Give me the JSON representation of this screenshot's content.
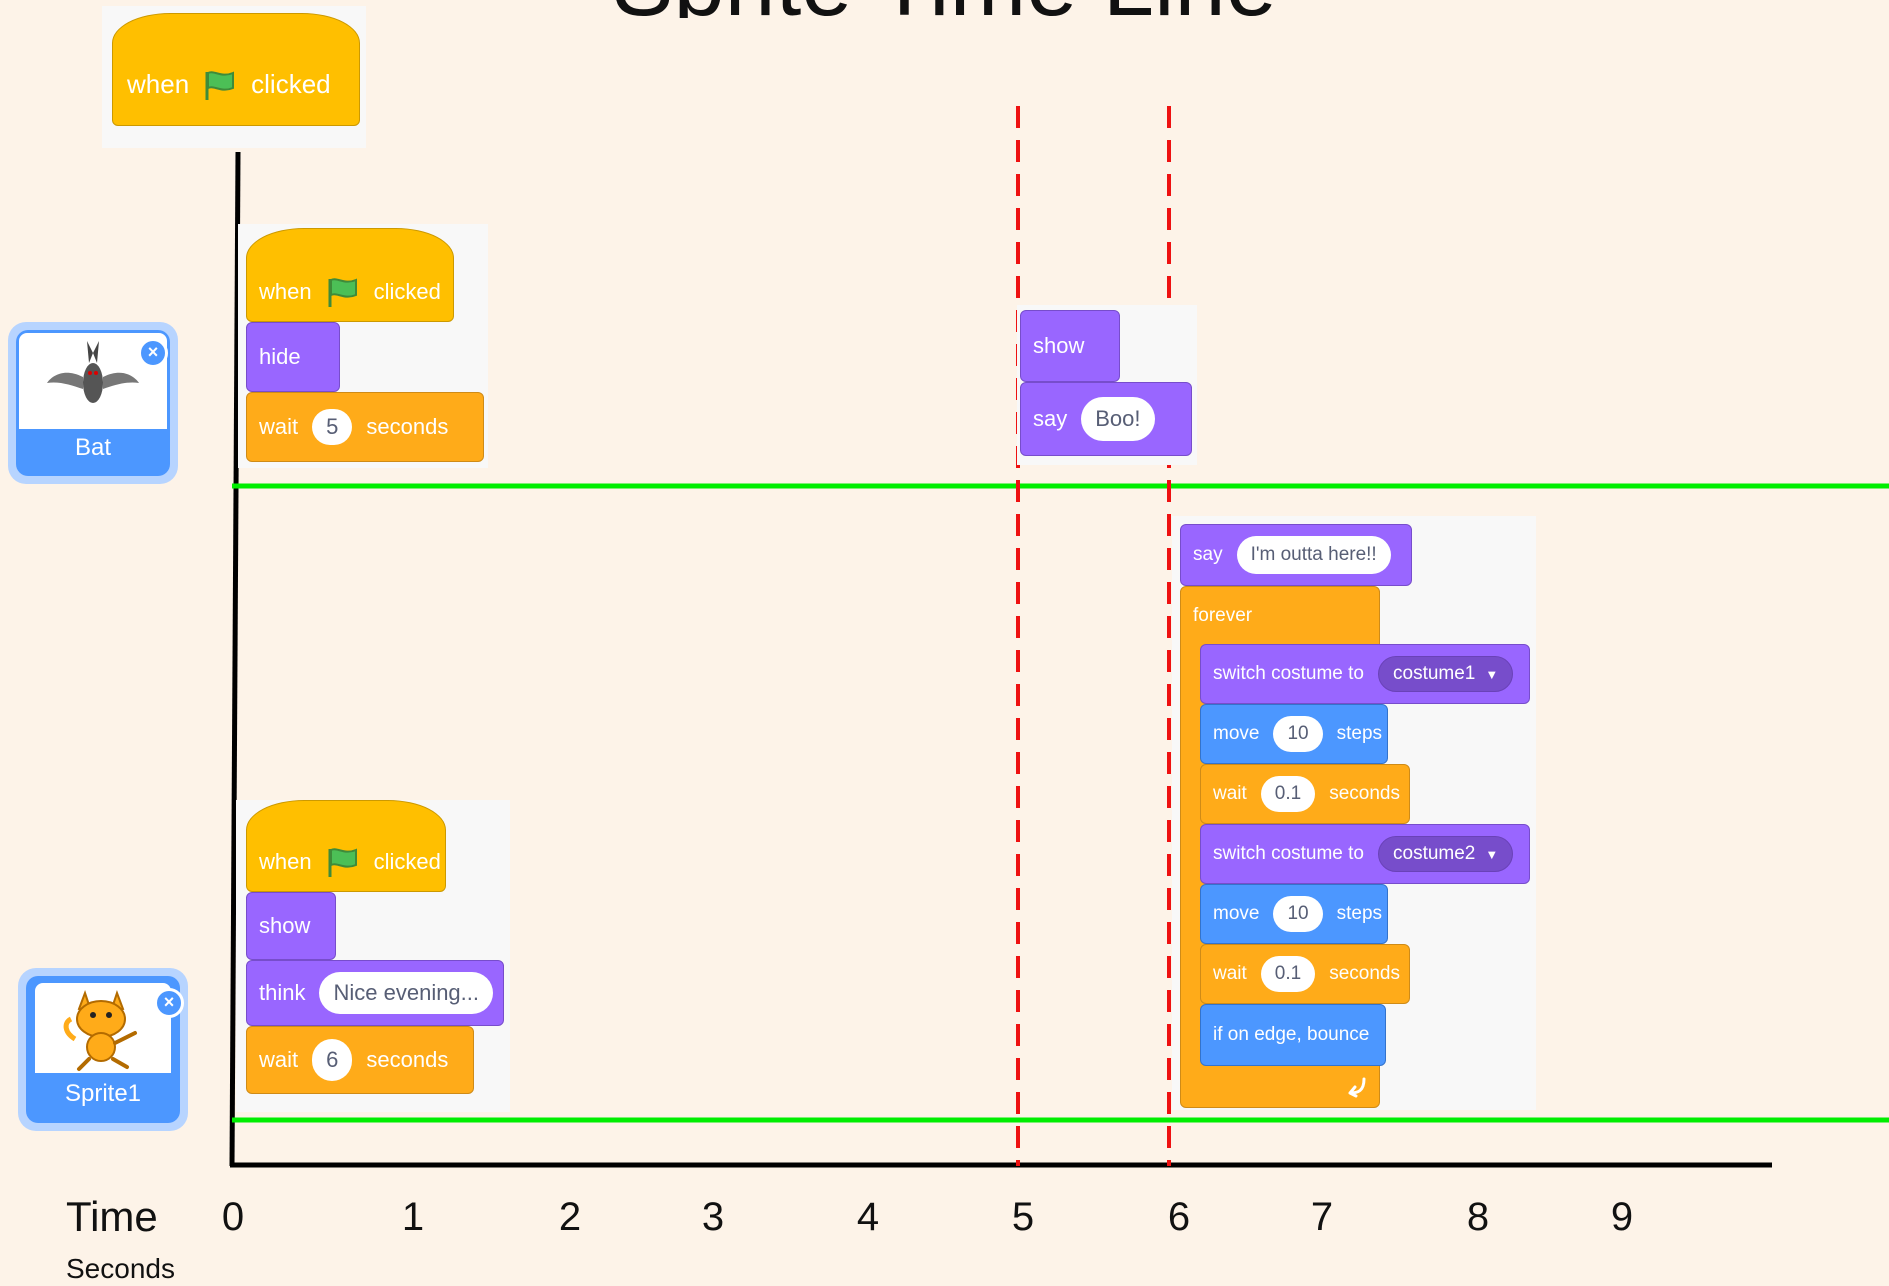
{
  "title": "Sprite Time Line",
  "axis": {
    "label": "Time",
    "unit": "Seconds",
    "ticks": [
      "0",
      "1",
      "2",
      "3",
      "4",
      "5",
      "6",
      "7",
      "8",
      "9"
    ]
  },
  "colors": {
    "background": "#fdf3e8",
    "divider_line": "#00ee00",
    "marker_line": "#ee1111",
    "event": "#ffbf00",
    "looks": "#9966ff",
    "control": "#ffab19",
    "motion": "#4c97ff"
  },
  "markers": [
    "5",
    "6"
  ],
  "top_hat": {
    "when": "when",
    "icon": "green-flag-icon",
    "clicked": "clicked"
  },
  "sprites": [
    {
      "name": "Bat",
      "close": "×"
    },
    {
      "name": "Sprite1",
      "close": "×"
    }
  ],
  "bat_script": {
    "hat": {
      "when": "when",
      "clicked": "clicked"
    },
    "hide": "hide",
    "wait": {
      "label": "wait",
      "value": "5",
      "unit": "seconds"
    }
  },
  "bat_script2": {
    "show": "show",
    "say": {
      "label": "say",
      "value": "Boo!"
    }
  },
  "sprite1_script": {
    "hat": {
      "when": "when",
      "clicked": "clicked"
    },
    "show": "show",
    "think": {
      "label": "think",
      "value": "Nice evening..."
    },
    "wait": {
      "label": "wait",
      "value": "6",
      "unit": "seconds"
    }
  },
  "sprite1_script2": {
    "say": {
      "label": "say",
      "value": "I'm outta here!!"
    },
    "forever": "forever",
    "costume1": {
      "label": "switch costume to",
      "value": "costume1"
    },
    "move1": {
      "label": "move",
      "value": "10",
      "unit": "steps"
    },
    "wait1": {
      "label": "wait",
      "value": "0.1",
      "unit": "seconds"
    },
    "costume2": {
      "label": "switch costume to",
      "value": "costume2"
    },
    "move2": {
      "label": "move",
      "value": "10",
      "unit": "steps"
    },
    "wait2": {
      "label": "wait",
      "value": "0.1",
      "unit": "seconds"
    },
    "bounce": "if on edge, bounce"
  }
}
